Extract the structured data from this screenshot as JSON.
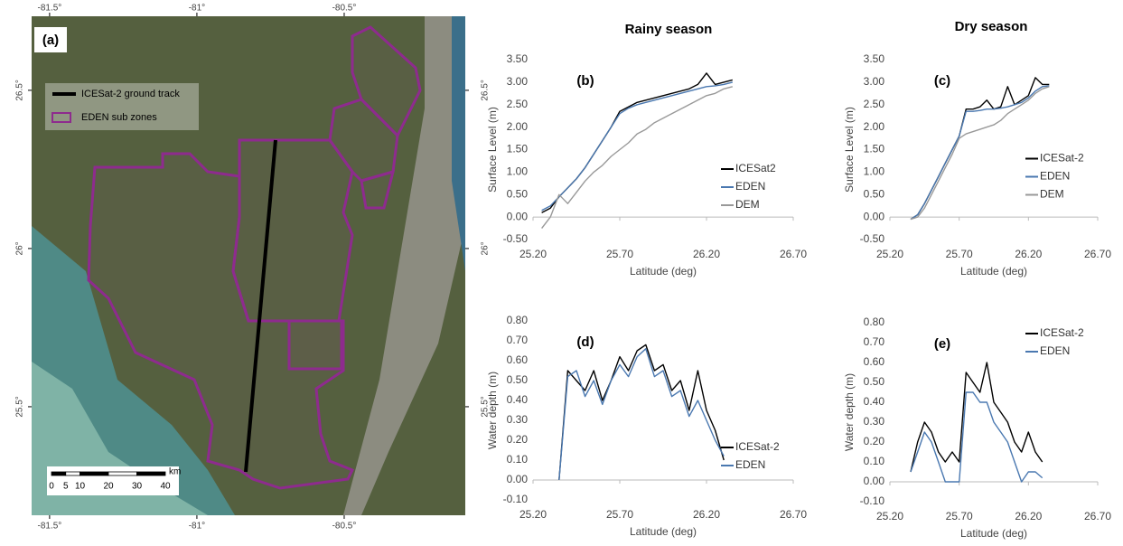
{
  "map": {
    "label": "(a)",
    "xlim": [
      -81.561,
      -80.089
    ],
    "ylim": [
      25.157,
      26.734
    ],
    "xticks": [
      {
        "value": -81.5,
        "label": "-81.5°"
      },
      {
        "value": -81,
        "label": "-81°"
      },
      {
        "value": -80.5,
        "label": "-80.5°"
      }
    ],
    "yticks": [
      {
        "value": 26.5,
        "label": "26.5°"
      },
      {
        "value": 26,
        "label": "26°"
      },
      {
        "value": 25.5,
        "label": "25.5°"
      }
    ],
    "legend": [
      "ICESat-2 ground track",
      "EDEN sub zones"
    ],
    "scale_unit": "km",
    "scale_ticks": [
      0,
      5,
      10,
      20,
      30,
      40
    ]
  },
  "column_titles": [
    "Rainy season",
    "Dry season"
  ],
  "chart_data": [
    {
      "type": "line",
      "label": "(b)",
      "xlabel": "Latitude (deg)",
      "ylabel": "Surface Level (m)",
      "legend": "lower right",
      "grid": false,
      "xlim": [
        25.2,
        26.7
      ],
      "ylim": [
        -0.5,
        3.5
      ],
      "xticks": [
        {
          "value": 25.2,
          "label": "25.20"
        },
        {
          "value": 25.7,
          "label": "25.70"
        },
        {
          "value": 26.2,
          "label": "26.20"
        },
        {
          "value": 26.7,
          "label": "26.70"
        }
      ],
      "yticks": [
        {
          "value": -0.5,
          "label": "-0.50"
        },
        {
          "value": 0,
          "label": "0.00"
        },
        {
          "value": 0.5,
          "label": "0.50"
        },
        {
          "value": 1,
          "label": "1.00"
        },
        {
          "value": 1.5,
          "label": "1.50"
        },
        {
          "value": 2,
          "label": "2.00"
        },
        {
          "value": 2.5,
          "label": "2.50"
        },
        {
          "value": 3,
          "label": "3.00"
        },
        {
          "value": 3.5,
          "label": "3.50"
        }
      ],
      "x": [
        25.25,
        25.3,
        25.35,
        25.4,
        25.45,
        25.5,
        25.55,
        25.6,
        25.65,
        25.7,
        25.75,
        25.8,
        25.85,
        25.9,
        25.95,
        26.0,
        26.05,
        26.1,
        26.15,
        26.2,
        26.25,
        26.3,
        26.35
      ],
      "series": [
        {
          "name": "ICESat2",
          "color": "#000000",
          "values": [
            0.1,
            0.2,
            0.45,
            0.65,
            0.85,
            1.1,
            1.4,
            1.7,
            2.0,
            2.35,
            2.45,
            2.55,
            2.6,
            2.65,
            2.7,
            2.75,
            2.8,
            2.85,
            2.95,
            3.2,
            2.95,
            3.0,
            3.05
          ]
        },
        {
          "name": "EDEN",
          "color": "#4a78b0",
          "values": [
            0.15,
            0.25,
            0.45,
            0.65,
            0.85,
            1.1,
            1.4,
            1.7,
            2.0,
            2.3,
            2.42,
            2.5,
            2.55,
            2.6,
            2.65,
            2.7,
            2.75,
            2.8,
            2.85,
            2.9,
            2.92,
            2.95,
            3.0
          ]
        },
        {
          "name": "DEM",
          "color": "#999999",
          "values": [
            -0.25,
            0.0,
            0.5,
            0.3,
            0.55,
            0.8,
            1.0,
            1.15,
            1.35,
            1.5,
            1.65,
            1.85,
            1.95,
            2.1,
            2.2,
            2.3,
            2.4,
            2.5,
            2.6,
            2.7,
            2.75,
            2.85,
            2.9
          ]
        }
      ]
    },
    {
      "type": "line",
      "label": "(c)",
      "xlabel": "Latitude (deg)",
      "ylabel": "Surface Level (m)",
      "legend": "right",
      "grid": false,
      "xlim": [
        25.2,
        26.7
      ],
      "ylim": [
        -0.5,
        3.5
      ],
      "xticks": [
        {
          "value": 25.2,
          "label": "25.20"
        },
        {
          "value": 25.7,
          "label": "25.70"
        },
        {
          "value": 26.2,
          "label": "26.20"
        },
        {
          "value": 26.7,
          "label": "26.70"
        }
      ],
      "yticks": [
        {
          "value": -0.5,
          "label": "-0.50"
        },
        {
          "value": 0,
          "label": "0.00"
        },
        {
          "value": 0.5,
          "label": "0.50"
        },
        {
          "value": 1,
          "label": "1.00"
        },
        {
          "value": 1.5,
          "label": "1.50"
        },
        {
          "value": 2,
          "label": "2.00"
        },
        {
          "value": 2.5,
          "label": "2.50"
        },
        {
          "value": 3,
          "label": "3.00"
        },
        {
          "value": 3.5,
          "label": "3.50"
        }
      ],
      "x": [
        25.35,
        25.4,
        25.45,
        25.5,
        25.55,
        25.6,
        25.65,
        25.7,
        25.75,
        25.8,
        25.85,
        25.9,
        25.95,
        26.0,
        26.05,
        26.1,
        26.15,
        26.2,
        26.25,
        26.3,
        26.35
      ],
      "series": [
        {
          "name": "ICESat-2",
          "color": "#000000",
          "values": [
            -0.05,
            0.05,
            0.3,
            0.6,
            0.9,
            1.2,
            1.5,
            1.8,
            2.4,
            2.4,
            2.45,
            2.6,
            2.4,
            2.45,
            2.9,
            2.5,
            2.6,
            2.7,
            3.1,
            2.95,
            2.95
          ]
        },
        {
          "name": "EDEN",
          "color": "#4a78b0",
          "values": [
            -0.05,
            0.05,
            0.3,
            0.6,
            0.9,
            1.2,
            1.5,
            1.8,
            2.35,
            2.35,
            2.37,
            2.4,
            2.4,
            2.42,
            2.45,
            2.5,
            2.55,
            2.65,
            2.8,
            2.9,
            2.92
          ]
        },
        {
          "name": "DEM",
          "color": "#999999",
          "values": [
            -0.05,
            0.0,
            0.2,
            0.5,
            0.8,
            1.1,
            1.4,
            1.75,
            1.85,
            1.9,
            1.95,
            2.0,
            2.05,
            2.15,
            2.3,
            2.4,
            2.5,
            2.6,
            2.75,
            2.85,
            2.9
          ]
        }
      ]
    },
    {
      "type": "line",
      "label": "(d)",
      "xlabel": "Latitude (deg)",
      "ylabel": "Water depth (m)",
      "legend": "lower right",
      "grid": false,
      "xlim": [
        25.2,
        26.7
      ],
      "ylim": [
        -0.1,
        0.8
      ],
      "xticks": [
        {
          "value": 25.2,
          "label": "25.20"
        },
        {
          "value": 25.7,
          "label": "25.70"
        },
        {
          "value": 26.2,
          "label": "26.20"
        },
        {
          "value": 26.7,
          "label": "26.70"
        }
      ],
      "yticks": [
        {
          "value": -0.1,
          "label": "-0.10"
        },
        {
          "value": 0,
          "label": "0.00"
        },
        {
          "value": 0.1,
          "label": "0.10"
        },
        {
          "value": 0.2,
          "label": "0.20"
        },
        {
          "value": 0.3,
          "label": "0.30"
        },
        {
          "value": 0.4,
          "label": "0.40"
        },
        {
          "value": 0.5,
          "label": "0.50"
        },
        {
          "value": 0.6,
          "label": "0.60"
        },
        {
          "value": 0.7,
          "label": "0.70"
        },
        {
          "value": 0.8,
          "label": "0.80"
        }
      ],
      "x": [
        25.35,
        25.4,
        25.45,
        25.5,
        25.55,
        25.6,
        25.65,
        25.7,
        25.75,
        25.8,
        25.85,
        25.9,
        25.95,
        26.0,
        26.05,
        26.1,
        26.15,
        26.2,
        26.25,
        26.3
      ],
      "series": [
        {
          "name": "ICESat-2",
          "color": "#000000",
          "values": [
            0.0,
            0.55,
            0.5,
            0.45,
            0.55,
            0.4,
            0.5,
            0.62,
            0.55,
            0.65,
            0.68,
            0.55,
            0.58,
            0.45,
            0.5,
            0.35,
            0.55,
            0.35,
            0.25,
            0.1
          ]
        },
        {
          "name": "EDEN",
          "color": "#4a78b0",
          "values": [
            0.0,
            0.52,
            0.55,
            0.42,
            0.5,
            0.38,
            0.5,
            0.58,
            0.52,
            0.62,
            0.66,
            0.52,
            0.55,
            0.42,
            0.45,
            0.32,
            0.4,
            0.3,
            0.2,
            0.12
          ]
        }
      ]
    },
    {
      "type": "line",
      "label": "(e)",
      "xlabel": "Latitude (deg)",
      "ylabel": "Water depth (m)",
      "legend": "upper right",
      "grid": false,
      "xlim": [
        25.2,
        26.7
      ],
      "ylim": [
        -0.1,
        0.8
      ],
      "xticks": [
        {
          "value": 25.2,
          "label": "25.20"
        },
        {
          "value": 25.7,
          "label": "25.70"
        },
        {
          "value": 26.2,
          "label": "26.20"
        },
        {
          "value": 26.7,
          "label": "26.70"
        }
      ],
      "yticks": [
        {
          "value": -0.1,
          "label": "-0.10"
        },
        {
          "value": 0,
          "label": "0.00"
        },
        {
          "value": 0.1,
          "label": "0.10"
        },
        {
          "value": 0.2,
          "label": "0.20"
        },
        {
          "value": 0.3,
          "label": "0.30"
        },
        {
          "value": 0.4,
          "label": "0.40"
        },
        {
          "value": 0.5,
          "label": "0.50"
        },
        {
          "value": 0.6,
          "label": "0.60"
        },
        {
          "value": 0.7,
          "label": "0.70"
        },
        {
          "value": 0.8,
          "label": "0.80"
        }
      ],
      "x": [
        25.35,
        25.4,
        25.45,
        25.5,
        25.55,
        25.6,
        25.65,
        25.7,
        25.75,
        25.8,
        25.85,
        25.9,
        25.95,
        26.0,
        26.05,
        26.1,
        26.15,
        26.2,
        26.25,
        26.3
      ],
      "series": [
        {
          "name": "ICESat-2",
          "color": "#000000",
          "values": [
            0.05,
            0.2,
            0.3,
            0.25,
            0.15,
            0.1,
            0.15,
            0.1,
            0.55,
            0.5,
            0.45,
            0.6,
            0.4,
            0.35,
            0.3,
            0.2,
            0.15,
            0.25,
            0.15,
            0.1
          ]
        },
        {
          "name": "EDEN",
          "color": "#4a78b0",
          "values": [
            0.05,
            0.15,
            0.25,
            0.2,
            0.1,
            0.0,
            0.0,
            0.0,
            0.45,
            0.45,
            0.4,
            0.4,
            0.3,
            0.25,
            0.2,
            0.1,
            0.0,
            0.05,
            0.05,
            0.02
          ]
        }
      ]
    }
  ]
}
